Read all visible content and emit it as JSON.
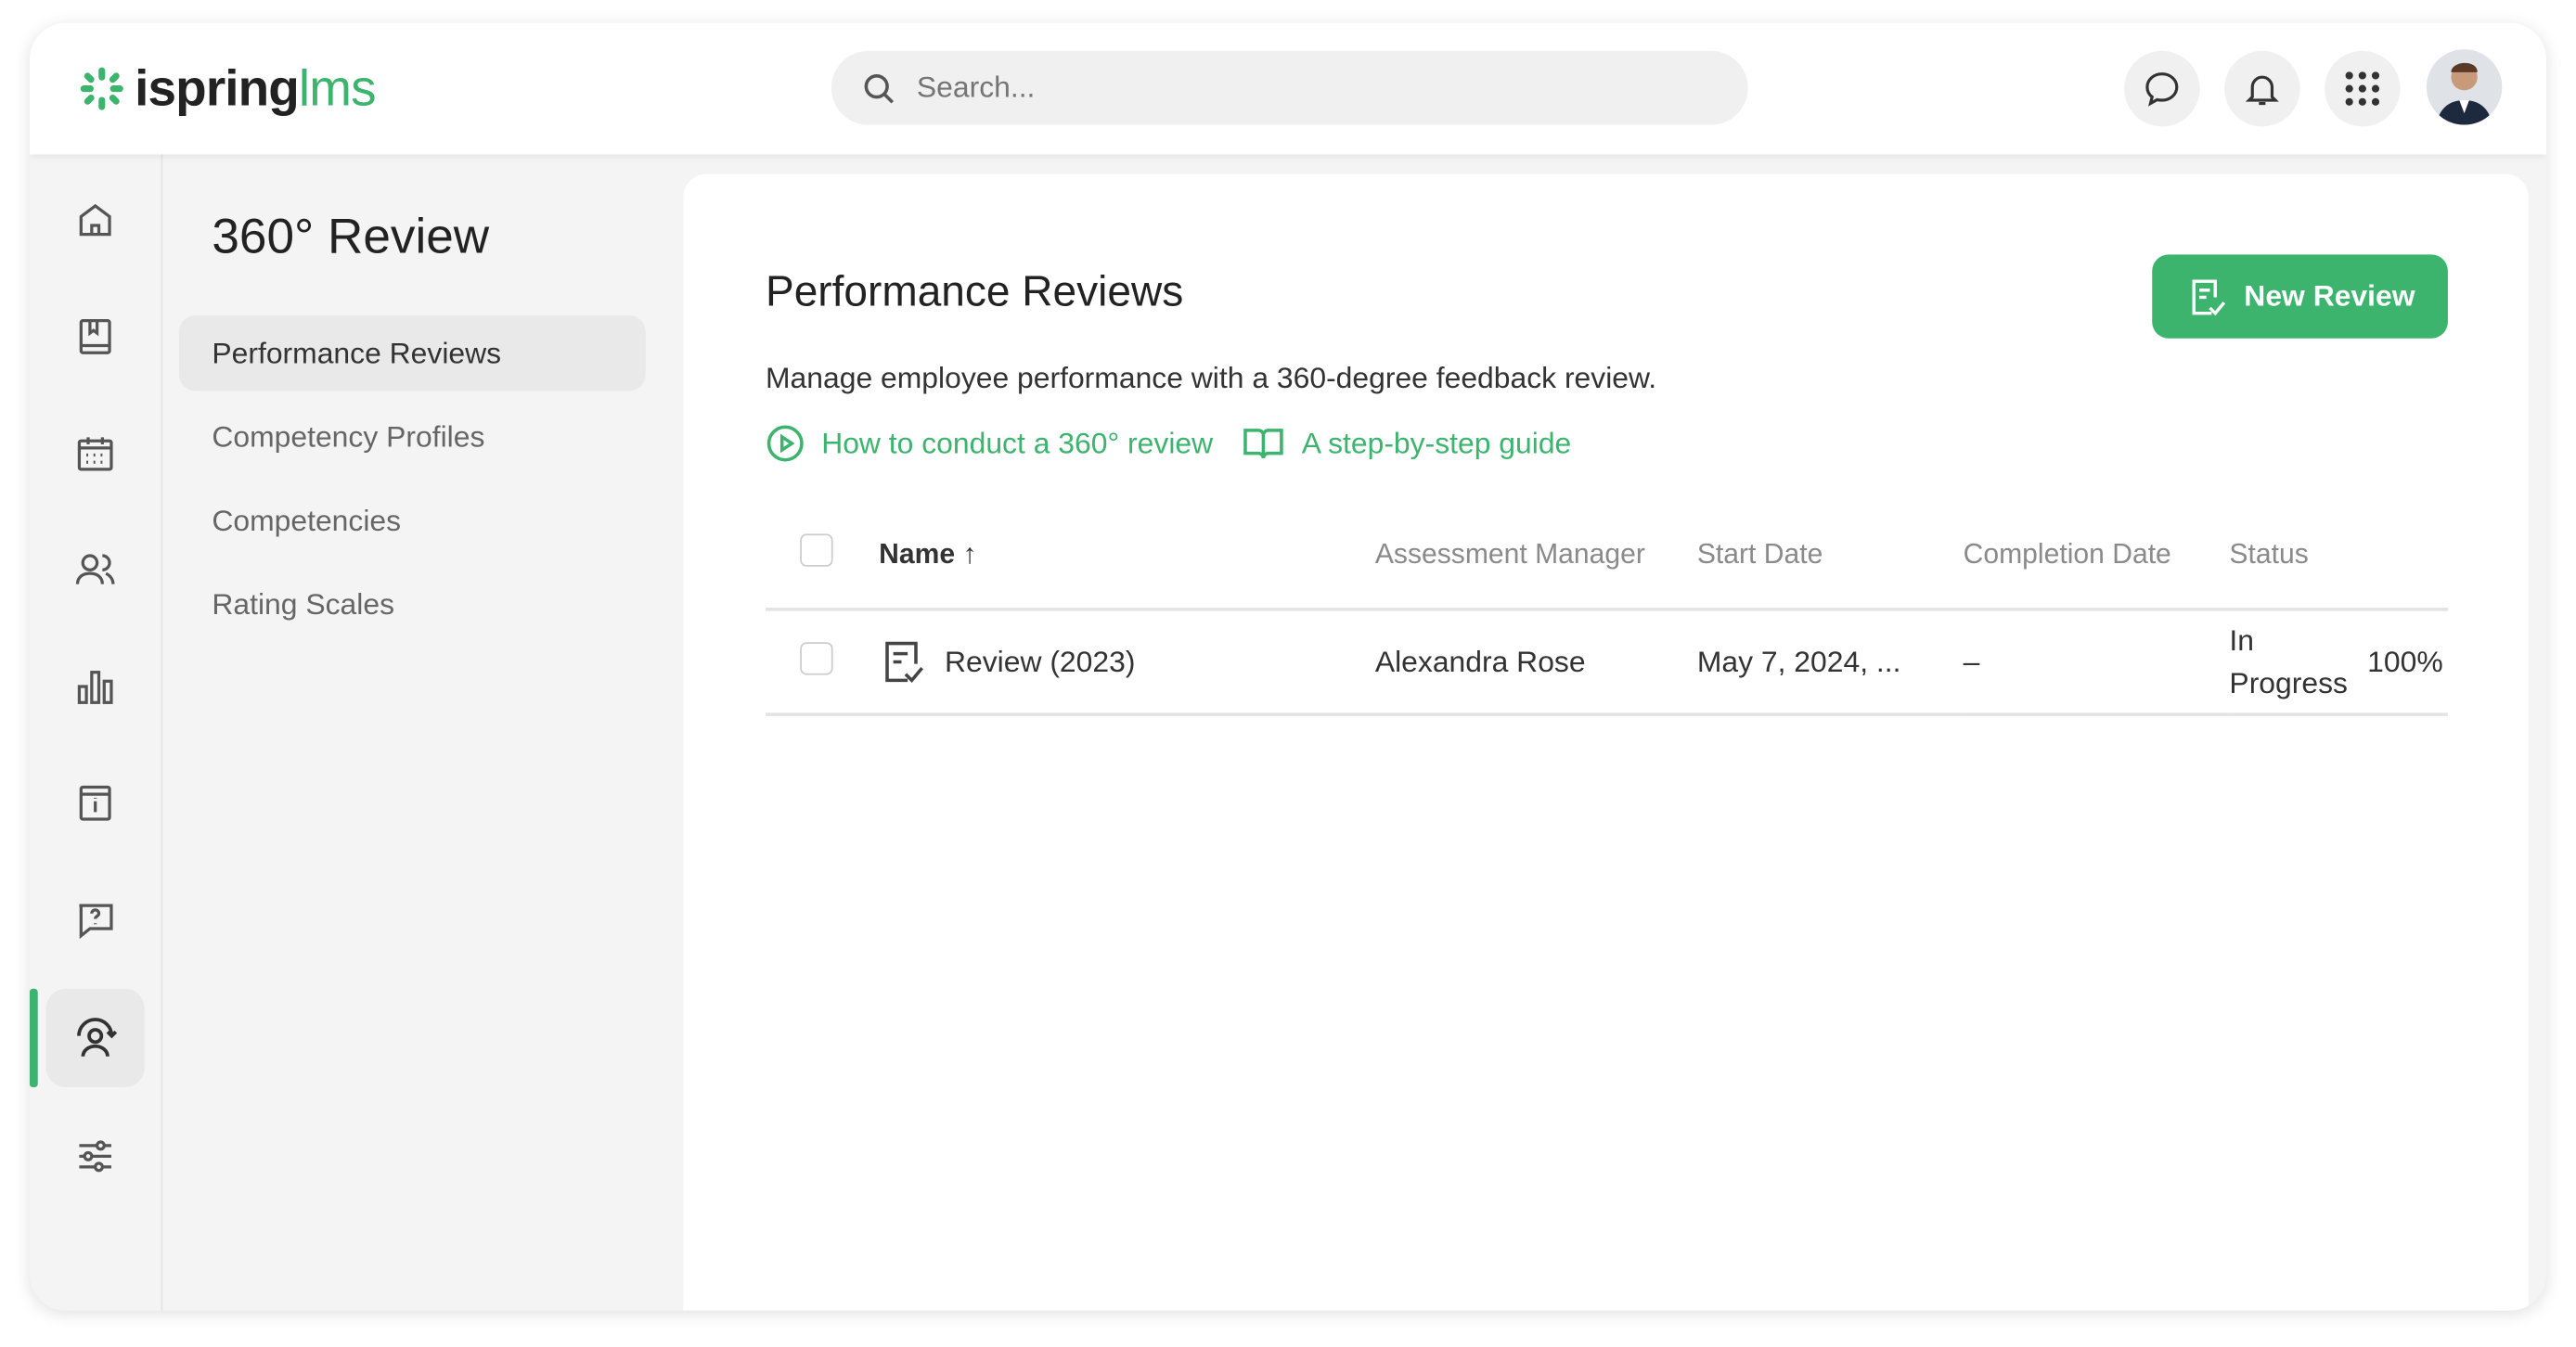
{
  "header": {
    "logo_part1": "ispring",
    "logo_part2": "lms",
    "search_placeholder": "Search..."
  },
  "colors": {
    "accent": "#3cb46e"
  },
  "rail": [
    "home-icon",
    "book-icon",
    "calendar-icon",
    "users-icon",
    "reports-icon",
    "info-icon",
    "help-icon",
    "review-360-icon",
    "settings-sliders-icon"
  ],
  "submenu": {
    "title": "360° Review",
    "items": [
      {
        "label": "Performance Reviews",
        "active": true
      },
      {
        "label": "Competency Profiles"
      },
      {
        "label": "Competencies"
      },
      {
        "label": "Rating Scales"
      }
    ]
  },
  "main": {
    "title": "Performance Reviews",
    "new_button": "New Review",
    "description": "Manage employee performance with a 360-degree feedback review.",
    "link_video": "How to conduct a 360° review",
    "link_guide": "A step-by-step guide",
    "table": {
      "headers": [
        "Name",
        "Assessment Manager",
        "Start Date",
        "Completion Date",
        "Status"
      ],
      "sort": "ascending",
      "rows": [
        {
          "name": "Review (2023)",
          "manager": "Alexandra Rose",
          "start": "May 7, 2024, ...",
          "completion": "–",
          "status": "In Progress",
          "progress": "100%"
        }
      ]
    }
  }
}
